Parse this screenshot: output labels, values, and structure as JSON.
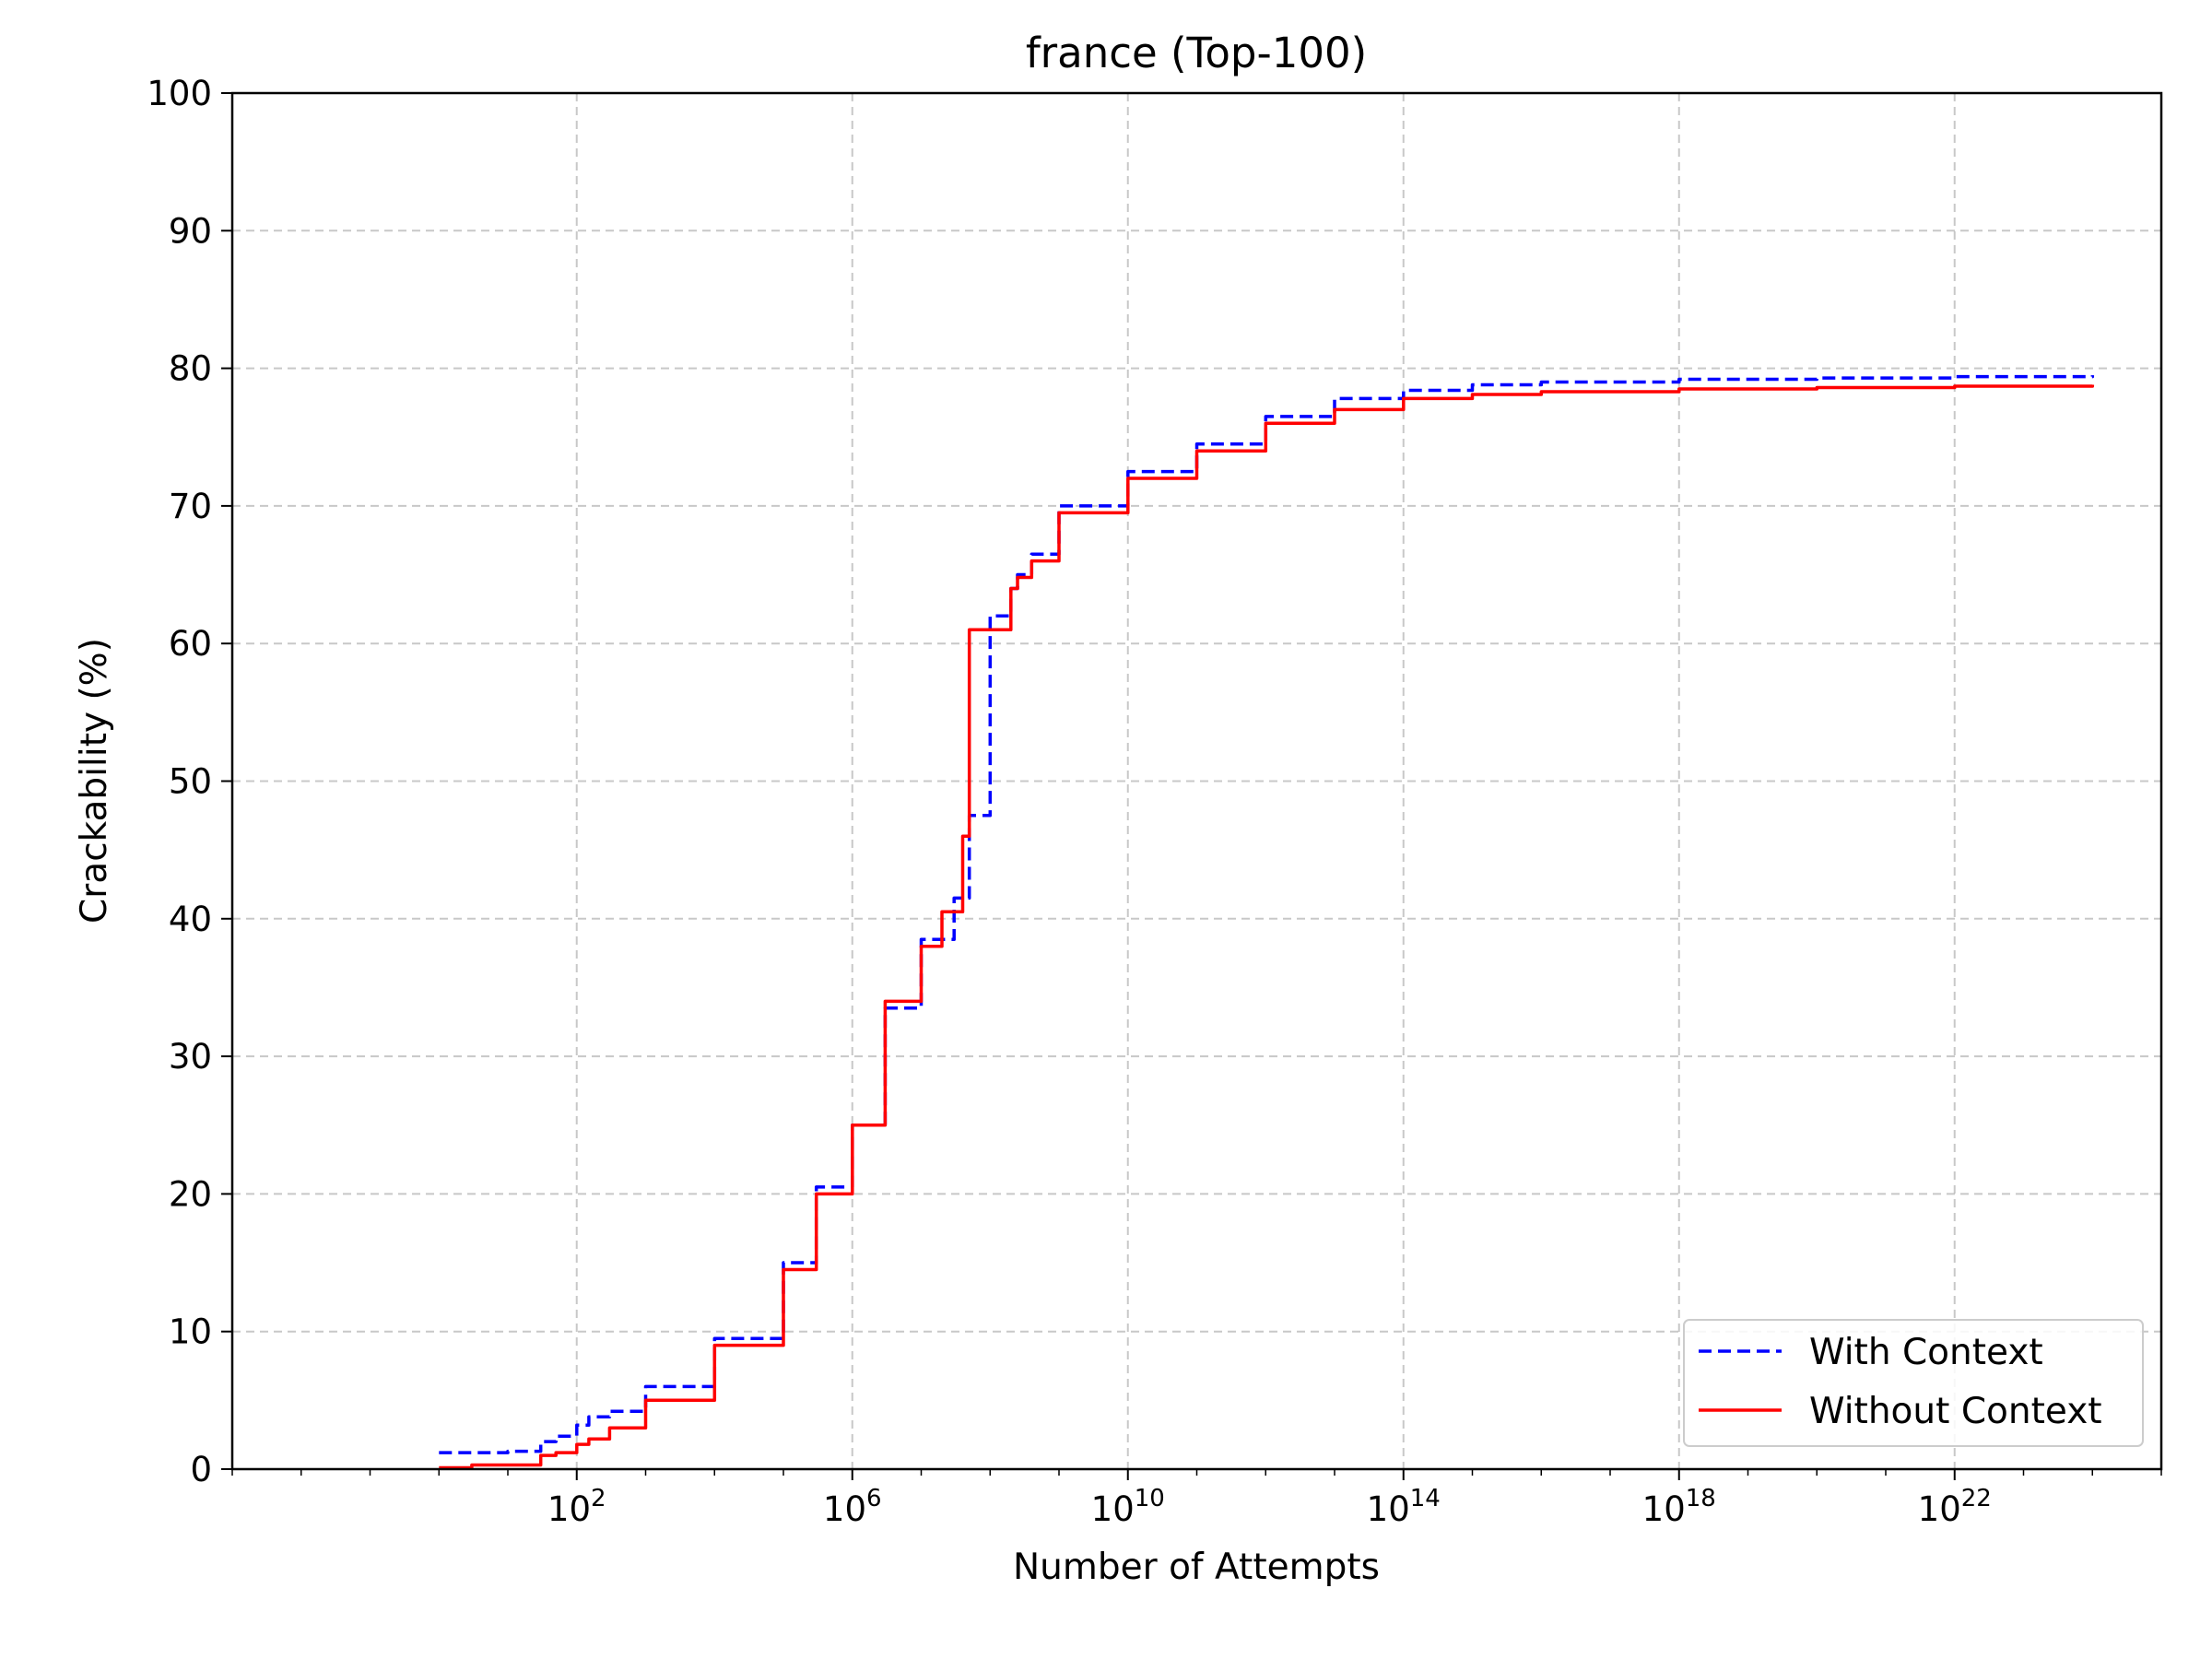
{
  "chart_data": {
    "type": "line",
    "title": "france (Top-100)",
    "xlabel": "Number of Attempts",
    "ylabel": "Crackability (%)",
    "x_scale": "log",
    "xlim": [
      0.001,
      1e+25
    ],
    "ylim": [
      0,
      100
    ],
    "x_tick_exponents": [
      2,
      6,
      10,
      14,
      18,
      22
    ],
    "y_ticks": [
      "0",
      "10",
      "20",
      "30",
      "40",
      "50",
      "60",
      "70",
      "80",
      "90",
      "100"
    ],
    "grid": true,
    "legend_position": "lower-right",
    "series": [
      {
        "name": "With Context",
        "color": "#0000ff",
        "style": "dashed",
        "x": [
          1,
          10,
          30,
          50,
          100,
          150,
          300,
          1000,
          10000.0,
          100000.0,
          300000.0,
          1000000.0,
          3000000.0,
          10000000.0,
          30000000.0,
          50000000.0,
          80000000.0,
          100000000.0,
          200000000.0,
          250000000.0,
          400000000.0,
          1000000000.0,
          10000000000.0,
          100000000000.0,
          1000000000000.0,
          10000000000000.0,
          100000000000000.0,
          1000000000000000.0,
          1e+16,
          1e+18,
          1e+20,
          1e+22,
          1e+24
        ],
        "y": [
          1.2,
          1.3,
          2.0,
          2.4,
          3.2,
          3.8,
          4.2,
          6.0,
          9.5,
          15.0,
          20.5,
          25.0,
          33.5,
          38.5,
          41.5,
          47.5,
          47.5,
          62.0,
          64.0,
          65.0,
          66.5,
          70.0,
          72.5,
          74.5,
          76.5,
          77.8,
          78.4,
          78.8,
          79.0,
          79.2,
          79.3,
          79.4,
          79.5
        ]
      },
      {
        "name": "Without Context",
        "color": "#ff0000",
        "style": "solid",
        "x": [
          1,
          3,
          30,
          50,
          100,
          150,
          300,
          1000,
          10000.0,
          100000.0,
          300000.0,
          1000000.0,
          3000000.0,
          10000000.0,
          20000000.0,
          40000000.0,
          50000000.0,
          100000000.0,
          200000000.0,
          250000000.0,
          400000000.0,
          1000000000.0,
          10000000000.0,
          100000000000.0,
          1000000000000.0,
          10000000000000.0,
          100000000000000.0,
          1000000000000000.0,
          1e+16,
          1e+18,
          1e+20,
          1e+22,
          1e+24
        ],
        "y": [
          0.1,
          0.3,
          1.0,
          1.2,
          1.8,
          2.2,
          3.0,
          5.0,
          9.0,
          14.5,
          20.0,
          25.0,
          34.0,
          38.0,
          40.5,
          46.0,
          61.0,
          61.0,
          64.0,
          64.8,
          66.0,
          69.5,
          72.0,
          74.0,
          76.0,
          77.0,
          77.8,
          78.1,
          78.3,
          78.5,
          78.6,
          78.7,
          78.8
        ]
      }
    ]
  }
}
